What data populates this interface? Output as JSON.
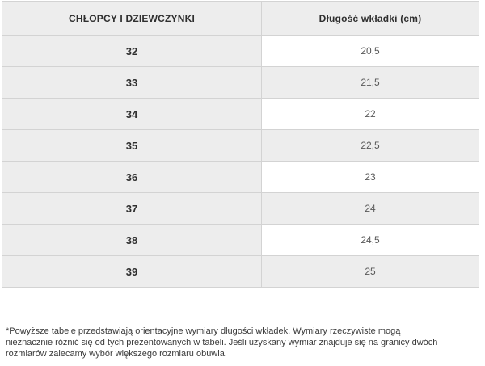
{
  "chart_data": {
    "type": "table",
    "columns": [
      "CHŁOPCY I DZIEWCZYNKI",
      "Długość wkładki (cm)"
    ],
    "rows": [
      [
        "32",
        "20,5"
      ],
      [
        "33",
        "21,5"
      ],
      [
        "34",
        "22"
      ],
      [
        "35",
        "22,5"
      ],
      [
        "36",
        "23"
      ],
      [
        "37",
        "24"
      ],
      [
        "38",
        "24,5"
      ],
      [
        "39",
        "25"
      ]
    ],
    "layout_hints": {
      "left_column_background": "#ededed",
      "right_column_alternating": [
        "#ffffff",
        "#ededed"
      ],
      "border_color": "#d3d3d3"
    }
  },
  "footnote": {
    "full_text": "*Powyższe tabele przedstawiają orientacyjne wymiary długości wkładek. Wymiary rzeczywiste mogą nieznacznie różnić się od tych prezentowanych w tabeli. Jeśli uzyskany wymiar znajduje się na granicy dwóch rozmiarów zalecamy wybór większego rozmiaru obuwia.",
    "lines": [
      "*Powyższe tabele przedstawiają orientacyjne wymiary długości wkładek. Wymiary rzeczywiste mogą",
      "nieznacznie różnić się od tych prezentowanych w tabeli. Jeśli uzyskany wymiar znajduje się na granicy dwóch",
      "rozmiarów zalecamy wybór większego rozmiaru obuwia."
    ]
  },
  "colors": {
    "shaded_cell": "#ededed",
    "plain_cell": "#ffffff",
    "border": "#d3d3d3",
    "header_text": "#2f2f2f",
    "value_text": "#595959",
    "footnote_text": "#3a3a3a"
  }
}
